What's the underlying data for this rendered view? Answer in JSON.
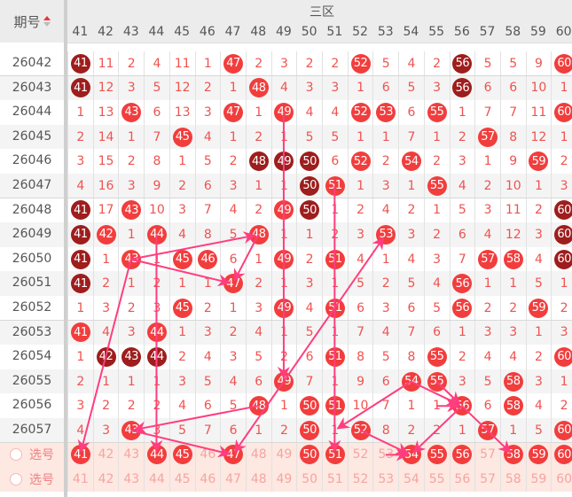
{
  "header": {
    "issue_label": "期号",
    "zone_label": "三区",
    "sort_icon": "sort-arrows-icon"
  },
  "columns": [
    41,
    42,
    43,
    44,
    45,
    46,
    47,
    48,
    49,
    50,
    51,
    52,
    53,
    54,
    55,
    56,
    57,
    58,
    59,
    60
  ],
  "rows": [
    {
      "issue": "26042",
      "cells": [
        41,
        11,
        2,
        4,
        11,
        1,
        47,
        2,
        3,
        2,
        2,
        52,
        5,
        4,
        2,
        56,
        5,
        5,
        9,
        60
      ],
      "dark": [
        41,
        56
      ]
    },
    {
      "issue": "26043",
      "cells": [
        41,
        12,
        3,
        5,
        12,
        2,
        1,
        48,
        4,
        3,
        3,
        1,
        6,
        5,
        3,
        56,
        6,
        6,
        10,
        1
      ],
      "dark": [
        41,
        56
      ]
    },
    {
      "issue": "26044",
      "cells": [
        1,
        13,
        43,
        6,
        13,
        3,
        47,
        1,
        49,
        4,
        4,
        52,
        53,
        6,
        55,
        1,
        7,
        7,
        11,
        60
      ],
      "dark": []
    },
    {
      "issue": "26045",
      "cells": [
        2,
        14,
        1,
        7,
        45,
        4,
        1,
        2,
        1,
        5,
        5,
        1,
        1,
        7,
        1,
        2,
        57,
        8,
        12,
        1
      ],
      "dark": []
    },
    {
      "issue": "26046",
      "cells": [
        3,
        15,
        2,
        8,
        1,
        5,
        2,
        48,
        49,
        50,
        6,
        52,
        2,
        54,
        2,
        3,
        1,
        9,
        59,
        2
      ],
      "dark": [
        48,
        49,
        50
      ]
    },
    {
      "issue": "26047",
      "cells": [
        4,
        16,
        3,
        9,
        2,
        6,
        3,
        1,
        1,
        50,
        51,
        1,
        3,
        1,
        55,
        4,
        2,
        10,
        1,
        3
      ],
      "dark": [
        50
      ]
    },
    {
      "issue": "26048",
      "cells": [
        41,
        17,
        43,
        10,
        3,
        7,
        4,
        2,
        49,
        50,
        1,
        2,
        4,
        2,
        1,
        5,
        3,
        11,
        2,
        60
      ],
      "dark": [
        41,
        50,
        60
      ]
    },
    {
      "issue": "26049",
      "cells": [
        41,
        42,
        1,
        44,
        4,
        8,
        5,
        48,
        1,
        1,
        2,
        3,
        53,
        3,
        2,
        6,
        4,
        12,
        3,
        60
      ],
      "dark": [
        41,
        60
      ]
    },
    {
      "issue": "26050",
      "cells": [
        41,
        1,
        43,
        1,
        45,
        46,
        6,
        1,
        49,
        2,
        51,
        4,
        1,
        4,
        3,
        7,
        57,
        58,
        4,
        60
      ],
      "dark": [
        41,
        60
      ]
    },
    {
      "issue": "26051",
      "cells": [
        41,
        2,
        1,
        2,
        1,
        1,
        47,
        2,
        1,
        3,
        1,
        5,
        2,
        5,
        4,
        56,
        1,
        1,
        5,
        1
      ],
      "dark": [
        41
      ]
    },
    {
      "issue": "26052",
      "cells": [
        1,
        3,
        2,
        3,
        45,
        2,
        1,
        3,
        49,
        4,
        51,
        6,
        3,
        6,
        5,
        56,
        2,
        2,
        59,
        2
      ],
      "dark": []
    },
    {
      "issue": "26053",
      "cells": [
        41,
        4,
        3,
        44,
        1,
        3,
        2,
        4,
        1,
        5,
        1,
        7,
        4,
        7,
        6,
        1,
        3,
        3,
        1,
        3
      ],
      "dark": []
    },
    {
      "issue": "26054",
      "cells": [
        1,
        42,
        43,
        44,
        2,
        4,
        3,
        5,
        2,
        6,
        51,
        8,
        5,
        8,
        55,
        2,
        4,
        4,
        2,
        60
      ],
      "dark": [
        42,
        43,
        44
      ]
    },
    {
      "issue": "26055",
      "cells": [
        2,
        1,
        1,
        1,
        3,
        5,
        4,
        6,
        49,
        7,
        1,
        9,
        6,
        54,
        55,
        3,
        5,
        58,
        3,
        1
      ],
      "dark": []
    },
    {
      "issue": "26056",
      "cells": [
        3,
        2,
        2,
        2,
        4,
        6,
        5,
        48,
        1,
        50,
        51,
        10,
        7,
        1,
        1,
        56,
        6,
        58,
        4,
        2
      ],
      "dark": []
    },
    {
      "issue": "26057",
      "cells": [
        4,
        3,
        43,
        3,
        5,
        7,
        6,
        1,
        2,
        50,
        1,
        52,
        8,
        2,
        2,
        1,
        57,
        1,
        5,
        60
      ],
      "dark": []
    }
  ],
  "pick_rows": [
    {
      "label": "选号",
      "selected": [
        41,
        44,
        45,
        47,
        50,
        51,
        54,
        55,
        56,
        58,
        59,
        60
      ]
    },
    {
      "label": "选号",
      "selected": []
    }
  ],
  "trend_lines": [
    {
      "from": [
        "26044",
        49
      ],
      "to": [
        "26055",
        49
      ]
    },
    {
      "from": [
        "26047",
        51
      ],
      "to": [
        "pick",
        51
      ]
    },
    {
      "from": [
        "26049",
        44
      ],
      "to": [
        "pick",
        44
      ]
    },
    {
      "from": [
        "26050",
        43
      ],
      "to": [
        "26049",
        48
      ]
    },
    {
      "from": [
        "26050",
        43
      ],
      "to": [
        "26051",
        47
      ]
    },
    {
      "from": [
        "26049",
        48
      ],
      "to": [
        "26051",
        47
      ]
    },
    {
      "from": [
        "26050",
        43
      ],
      "to": [
        "pick",
        41
      ]
    },
    {
      "from": [
        "26055",
        49
      ],
      "to": [
        "26049",
        53
      ]
    },
    {
      "from": [
        "26055",
        49
      ],
      "to": [
        "pick",
        47
      ]
    },
    {
      "from": [
        "26056",
        48
      ],
      "to": [
        "26057",
        43
      ]
    },
    {
      "from": [
        "26057",
        43
      ],
      "to": [
        "pick",
        47
      ]
    },
    {
      "from": [
        "26055",
        54
      ],
      "to": [
        "26057",
        51
      ]
    },
    {
      "from": [
        "26055",
        54
      ],
      "to": [
        "26056",
        56
      ]
    },
    {
      "from": [
        "26055",
        55
      ],
      "to": [
        "26056",
        56
      ]
    },
    {
      "from": [
        "26056",
        55
      ],
      "to": [
        "26056",
        56
      ]
    },
    {
      "from": [
        "26056",
        56
      ],
      "to": [
        "pick",
        54
      ]
    },
    {
      "from": [
        "26056",
        56
      ],
      "to": [
        "pick",
        58
      ]
    },
    {
      "from": [
        "26057",
        52
      ],
      "to": [
        "pick",
        54
      ]
    },
    {
      "from": [
        "pick",
        53
      ],
      "to": [
        "pick",
        54
      ]
    }
  ],
  "colors": {
    "ball": "#f23d3d",
    "ball_dark": "#9e1d1d",
    "miss_text": "#ef5350",
    "trend_line": "#ff3d7f",
    "pick_bg": "#fde8e2"
  }
}
